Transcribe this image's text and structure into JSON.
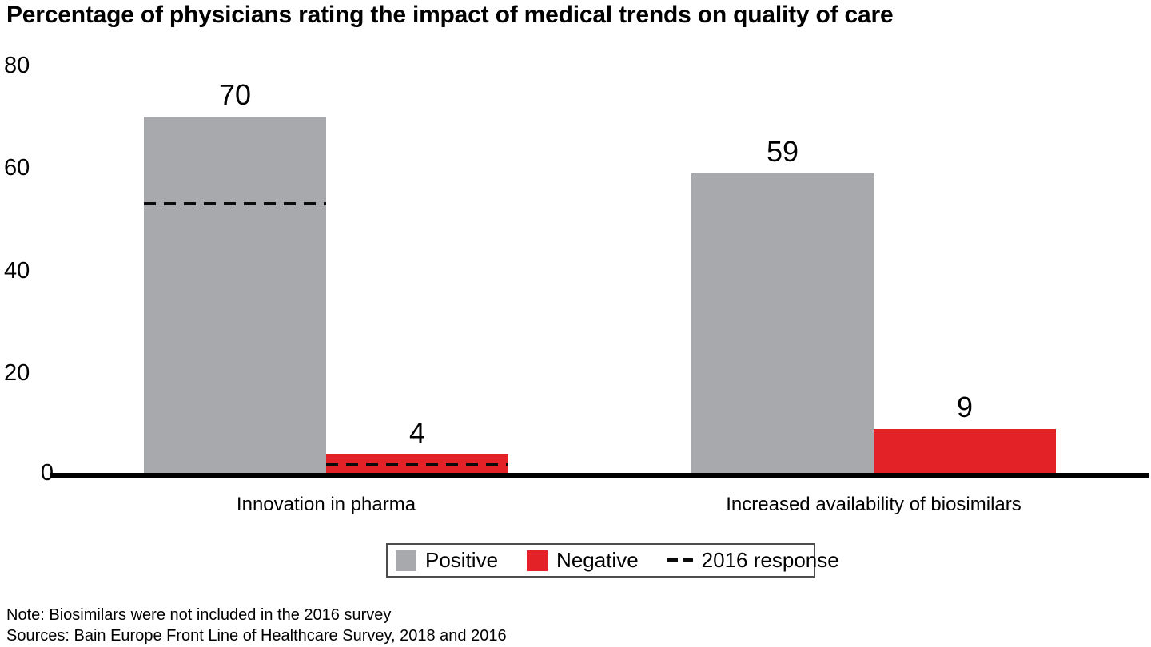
{
  "title": "Percentage of physicians rating the impact of medical trends on quality of care",
  "chart_data": {
    "type": "bar",
    "title": "Percentage of physicians rating the impact of medical trends on quality of care",
    "categories": [
      "Innovation in pharma",
      "Increased availability of biosimilars"
    ],
    "series": [
      {
        "name": "Positive",
        "color": "#a7a9ac",
        "values": [
          70,
          59
        ]
      },
      {
        "name": "Negative",
        "color": "#e22226",
        "values": [
          4,
          9
        ]
      }
    ],
    "reference_lines": {
      "name": "2016 response",
      "style": "dashed",
      "color": "#0b0b0b",
      "values": [
        {
          "category": "Innovation in pharma",
          "Positive": 53,
          "Negative": 2
        },
        {
          "category": "Increased availability of biosimilars",
          "Positive": null,
          "Negative": null
        }
      ]
    },
    "xlabel": "",
    "ylabel": "",
    "ylim": [
      0,
      80
    ],
    "yticks": [
      0,
      20,
      40,
      60,
      80
    ],
    "grid": false,
    "legend_position": "bottom"
  },
  "legend": {
    "positive_label": "Positive",
    "negative_label": "Negative",
    "reference_label": "2016 response"
  },
  "footer": {
    "note": "Note: Biosimilars were not included in the 2016 survey",
    "sources": "Sources: Bain Europe Front Line of Healthcare Survey, 2018 and 2016"
  },
  "colors": {
    "positive": "#a7a9ac",
    "negative": "#e22226",
    "axis": "#000000",
    "reference_dash": "#0b0b0b"
  }
}
